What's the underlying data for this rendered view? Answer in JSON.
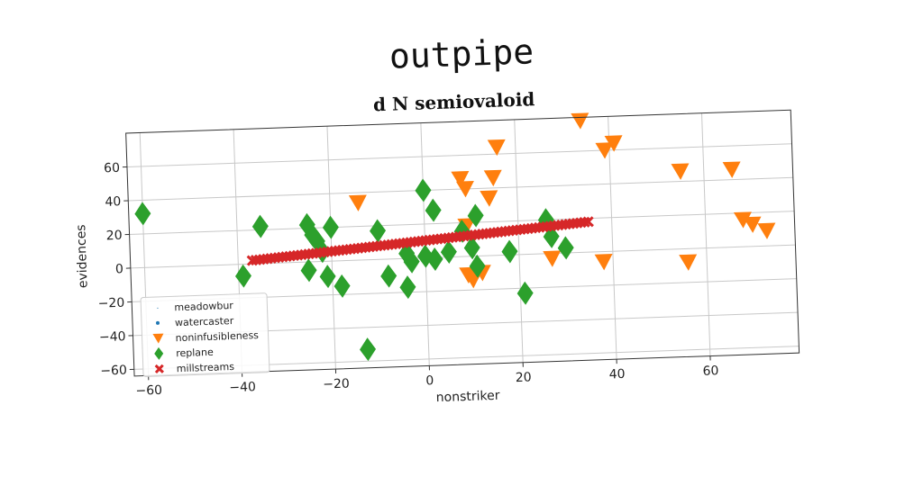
{
  "suptitle": "outpipe",
  "chart_data": {
    "type": "scatter",
    "title": "d N semiovaloid",
    "xlabel": "nonstriker",
    "ylabel": "evidences",
    "xlim": [
      -63,
      79
    ],
    "ylim": [
      -64,
      80
    ],
    "xticks": [
      -60,
      -40,
      -20,
      0,
      20,
      40,
      60
    ],
    "yticks": [
      -60,
      -40,
      -20,
      0,
      20,
      40,
      60
    ],
    "xtick_labels": [
      "−60",
      "−40",
      "−20",
      "0",
      "20",
      "40",
      "60"
    ],
    "ytick_labels": [
      "−60",
      "−40",
      "−20",
      "0",
      "20",
      "40",
      "60"
    ],
    "grid": true,
    "legend_position": "lower-left",
    "series": [
      {
        "name": "meadowbur",
        "marker": "pixel",
        "color": "#1f77b4",
        "points": []
      },
      {
        "name": "watercaster",
        "marker": "point",
        "color": "#1f77b4",
        "points": []
      },
      {
        "name": "noninfusibleness",
        "marker": "triangle-down",
        "color": "#ff7f0e",
        "points": [
          [
            -14,
            34
          ],
          [
            8,
            46
          ],
          [
            9,
            40
          ],
          [
            15,
            46
          ],
          [
            14,
            34
          ],
          [
            16,
            64
          ],
          [
            34,
            78
          ],
          [
            39,
            60
          ],
          [
            41,
            64
          ],
          [
            55,
            46
          ],
          [
            66,
            46
          ],
          [
            68,
            16
          ],
          [
            70,
            13
          ],
          [
            73,
            9
          ],
          [
            9,
            18
          ],
          [
            27,
            -3
          ],
          [
            38,
            -6
          ],
          [
            56,
            -8
          ],
          [
            10,
            -14
          ],
          [
            12,
            -10
          ],
          [
            9,
            -11
          ]
        ]
      },
      {
        "name": "replane",
        "marker": "diamond",
        "color": "#2ca02c",
        "points": [
          [
            -60,
            32
          ],
          [
            -39,
            -7
          ],
          [
            -35,
            22
          ],
          [
            -25,
            22
          ],
          [
            -24,
            16
          ],
          [
            -23,
            12
          ],
          [
            -22,
            6
          ],
          [
            -20,
            20
          ],
          [
            -25,
            -5
          ],
          [
            -21,
            -9
          ],
          [
            -18,
            -15
          ],
          [
            -13,
            -53
          ],
          [
            -10,
            17
          ],
          [
            -8,
            -10
          ],
          [
            -4,
            -17
          ],
          [
            -3,
            -2
          ],
          [
            0,
            40
          ],
          [
            2,
            28
          ],
          [
            -4,
            3
          ],
          [
            0,
            1
          ],
          [
            2,
            -1
          ],
          [
            5,
            3
          ],
          [
            8,
            15
          ],
          [
            10,
            5
          ],
          [
            11,
            24
          ],
          [
            11,
            -6
          ],
          [
            18,
            2
          ],
          [
            21,
            -23
          ],
          [
            26,
            20
          ],
          [
            27,
            10
          ],
          [
            30,
            3
          ]
        ]
      },
      {
        "name": "millstreams",
        "marker": "x",
        "color": "#d62728",
        "line": {
          "x0": -37,
          "x1": 35,
          "y0": 2,
          "y1": 18,
          "n": 90
        }
      }
    ]
  }
}
